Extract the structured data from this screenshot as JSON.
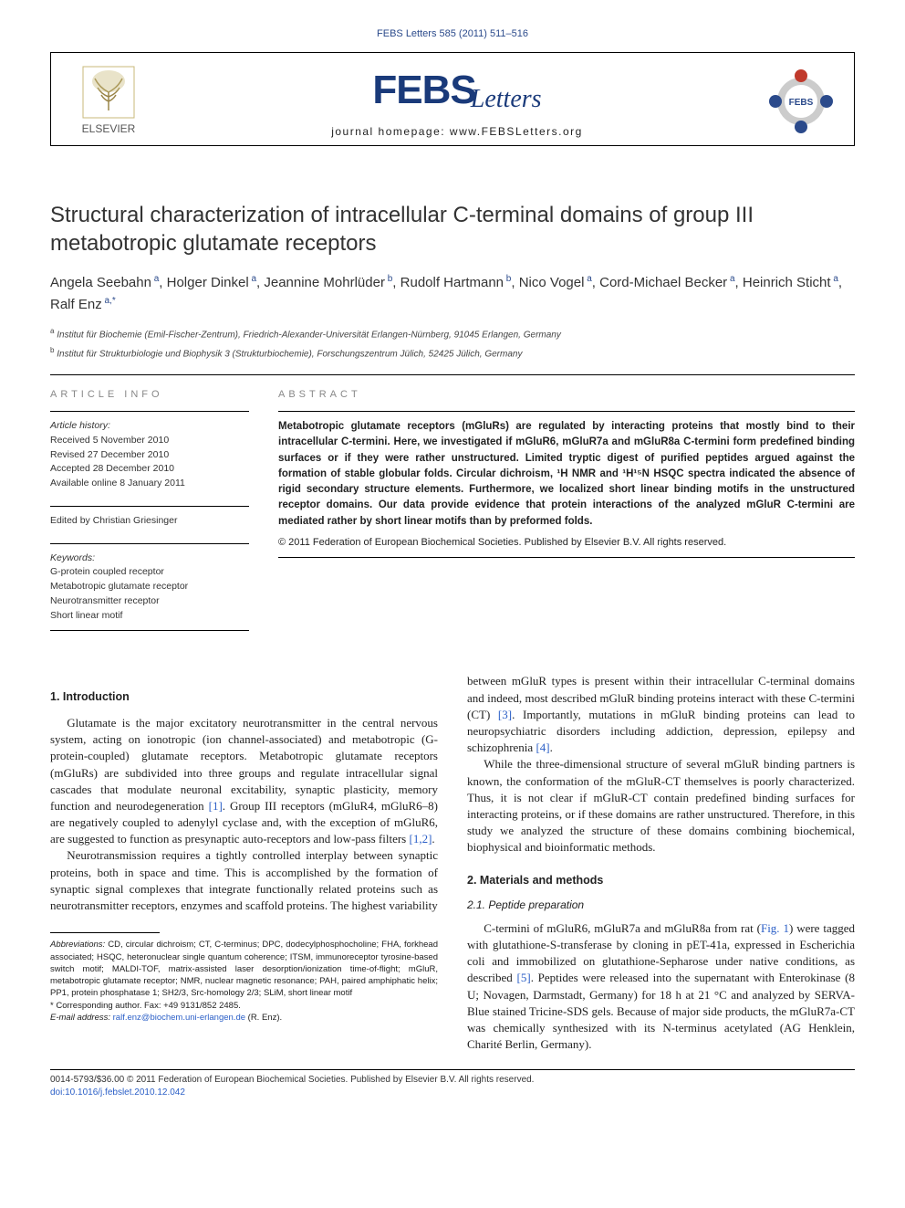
{
  "header": {
    "citation": "FEBS Letters 585 (2011) 511–516",
    "publisher": "ELSEVIER",
    "journal_abbr": "FEBS",
    "journal_word": "Letters",
    "homepage_label": "journal homepage: www.FEBSLetters.org"
  },
  "title": "Structural characterization of intracellular C-terminal domains of group III metabotropic glutamate receptors",
  "authors": [
    {
      "name": "Angela Seebahn",
      "aff": "a"
    },
    {
      "name": "Holger Dinkel",
      "aff": "a"
    },
    {
      "name": "Jeannine Mohrlüder",
      "aff": "b"
    },
    {
      "name": "Rudolf Hartmann",
      "aff": "b"
    },
    {
      "name": "Nico Vogel",
      "aff": "a"
    },
    {
      "name": "Cord-Michael Becker",
      "aff": "a"
    },
    {
      "name": "Heinrich Sticht",
      "aff": "a"
    },
    {
      "name": "Ralf Enz",
      "aff": "a,*"
    }
  ],
  "affiliations": [
    {
      "key": "a",
      "text": "Institut für Biochemie (Emil-Fischer-Zentrum), Friedrich-Alexander-Universität Erlangen-Nürnberg, 91045 Erlangen, Germany"
    },
    {
      "key": "b",
      "text": "Institut für Strukturbiologie und Biophysik 3 (Strukturbiochemie), Forschungszentrum Jülich, 52425 Jülich, Germany"
    }
  ],
  "article_info": {
    "label": "ARTICLE INFO",
    "history_label": "Article history:",
    "history": [
      "Received 5 November 2010",
      "Revised 27 December 2010",
      "Accepted 28 December 2010",
      "Available online 8 January 2011"
    ],
    "edited_by": "Edited by Christian Griesinger",
    "keywords_label": "Keywords:",
    "keywords": [
      "G-protein coupled receptor",
      "Metabotropic glutamate receptor",
      "Neurotransmitter receptor",
      "Short linear motif"
    ]
  },
  "abstract": {
    "label": "ABSTRACT",
    "text": "Metabotropic glutamate receptors (mGluRs) are regulated by interacting proteins that mostly bind to their intracellular C-termini. Here, we investigated if mGluR6, mGluR7a and mGluR8a C-termini form predefined binding surfaces or if they were rather unstructured. Limited tryptic digest of purified peptides argued against the formation of stable globular folds. Circular dichroism, ¹H NMR and ¹H¹⁵N HSQC spectra indicated the absence of rigid secondary structure elements. Furthermore, we localized short linear binding motifs in the unstructured receptor domains. Our data provide evidence that protein interactions of the analyzed mGluR C-termini are mediated rather by short linear motifs than by preformed folds.",
    "copyright": "© 2011 Federation of European Biochemical Societies. Published by Elsevier B.V. All rights reserved."
  },
  "body": {
    "intro_heading": "1. Introduction",
    "intro_p1": "Glutamate is the major excitatory neurotransmitter in the central nervous system, acting on ionotropic (ion channel-associated) and metabotropic (G-protein-coupled) glutamate receptors. Metabotropic glutamate receptors (mGluRs) are subdivided into three groups and regulate intracellular signal cascades that modulate neuronal excitability, synaptic plasticity, memory function and neurodegeneration ",
    "intro_p1_ref1": "[1]",
    "intro_p1b": ". Group III receptors (mGluR4, mGluR6–8) are negatively coupled to adenylyl cyclase and, with the exception of mGluR6, are suggested to function as presynaptic auto-receptors and low-pass filters ",
    "intro_p1_ref2": "[1,2]",
    "intro_p1c": ".",
    "intro_p2": "Neurotransmission requires a tightly controlled interplay between synaptic proteins, both in space and time. This is accomplished by the formation of synaptic signal complexes that integrate functionally related proteins such as neurotransmitter receptors, enzymes and scaffold proteins. The highest variability",
    "col2_p1a": "between mGluR types is present within their intracellular C-terminal domains and indeed, most described mGluR binding proteins interact with these C-termini (CT) ",
    "col2_p1_ref3": "[3]",
    "col2_p1b": ". Importantly, mutations in mGluR binding proteins can lead to neuropsychiatric disorders including addiction, depression, epilepsy and schizophrenia ",
    "col2_p1_ref4": "[4]",
    "col2_p1c": ".",
    "col2_p2": "While the three-dimensional structure of several mGluR binding partners is known, the conformation of the mGluR-CT themselves is poorly characterized. Thus, it is not clear if mGluR-CT contain predefined binding surfaces for interacting proteins, or if these domains are rather unstructured. Therefore, in this study we analyzed the structure of these domains combining biochemical, biophysical and bioinformatic methods.",
    "methods_heading": "2. Materials and methods",
    "methods_sub": "2.1. Peptide preparation",
    "methods_p1a": "C-termini of mGluR6, mGluR7a and mGluR8a from rat (",
    "methods_p1_fig": "Fig. 1",
    "methods_p1b": ") were tagged with glutathione-S-transferase by cloning in pET-41a, expressed in Escherichia coli and immobilized on glutathione-Sepharose under native conditions, as described ",
    "methods_p1_ref5": "[5]",
    "methods_p1c": ". Peptides were released into the supernatant with Enterokinase (8 U; Novagen, Darmstadt, Germany) for 18 h at 21 °C and analyzed by SERVA-Blue stained Tricine-SDS gels. Because of major side products, the mGluR7a-CT was chemically synthesized with its N-terminus acetylated (AG Henklein, Charité Berlin, Germany)."
  },
  "footnotes": {
    "abbrev_label": "Abbreviations:",
    "abbrev_text": " CD, circular dichroism; CT, C-terminus; DPC, dodecylphosphocholine; FHA, forkhead associated; HSQC, heteronuclear single quantum coherence; ITSM, immunoreceptor tyrosine-based switch motif; MALDI-TOF, matrix-assisted laser desorption/ionization time-of-flight; mGluR, metabotropic glutamate receptor; NMR, nuclear magnetic resonance; PAH, paired amphiphatic helix; PP1, protein phosphatase 1; SH2/3, Src-homology 2/3; SLiM, short linear motif",
    "corresponding": "* Corresponding author. Fax: +49 9131/852 2485.",
    "email_label": "E-mail address: ",
    "email": "ralf.enz@biochem.uni-erlangen.de",
    "email_suffix": " (R. Enz)."
  },
  "footer": {
    "issn": "0014-5793/$36.00 © 2011 Federation of European Biochemical Societies. Published by Elsevier B.V. All rights reserved.",
    "doi": "doi:10.1016/j.febslet.2010.12.042"
  },
  "colors": {
    "link": "#2b5fc7",
    "header_blue": "#1a3a7a"
  }
}
